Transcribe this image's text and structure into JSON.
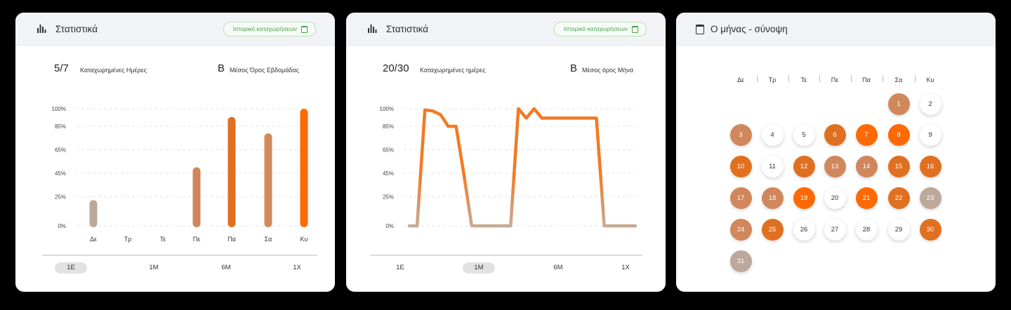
{
  "weekly_card": {
    "title": "Στατιστικά",
    "history_button": "Ιστορικό καταχωρήσεων",
    "days_logged": "5/7",
    "days_logged_label": "Καταχωρημένες Ημέρες",
    "grade": "Β",
    "grade_label": "Μέσος Όρος Εβδομάδας",
    "ranges": [
      "1Ε",
      "1Μ",
      "6Μ",
      "1Χ"
    ],
    "active_range": "1Ε"
  },
  "monthly_card": {
    "title": "Στατιστικά",
    "history_button": "Ιστορικό καταχωρήσεων",
    "days_logged": "20/30",
    "days_logged_label": "Καταχωρημένες ημέρες",
    "grade": "Β",
    "grade_label": "Μέσος όρος Μήνα",
    "ranges": [
      "1Ε",
      "1Μ",
      "6Μ",
      "1Χ"
    ],
    "active_range": "1Μ"
  },
  "calendar_card": {
    "title": "Ο μήνας - σύνοψη",
    "weekdays": [
      "Δε",
      "Τρ",
      "Τε",
      "Πε",
      "Πα",
      "Σα",
      "Κυ"
    ],
    "first_weekday_index": 5,
    "days": [
      {
        "day": "1",
        "status": "light"
      },
      {
        "day": "2",
        "status": "none"
      },
      {
        "day": "3",
        "status": "light"
      },
      {
        "day": "4",
        "status": "none"
      },
      {
        "day": "5",
        "status": "none"
      },
      {
        "day": "6",
        "status": "mid"
      },
      {
        "day": "7",
        "status": "strong"
      },
      {
        "day": "8",
        "status": "strong"
      },
      {
        "day": "9",
        "status": "none"
      },
      {
        "day": "10",
        "status": "mid"
      },
      {
        "day": "11",
        "status": "none"
      },
      {
        "day": "12",
        "status": "mid"
      },
      {
        "day": "13",
        "status": "light"
      },
      {
        "day": "14",
        "status": "light"
      },
      {
        "day": "15",
        "status": "mid"
      },
      {
        "day": "16",
        "status": "mid"
      },
      {
        "day": "17",
        "status": "light"
      },
      {
        "day": "18",
        "status": "light"
      },
      {
        "day": "19",
        "status": "strong"
      },
      {
        "day": "20",
        "status": "none"
      },
      {
        "day": "21",
        "status": "strong"
      },
      {
        "day": "22",
        "status": "mid"
      },
      {
        "day": "23",
        "status": "grey"
      },
      {
        "day": "24",
        "status": "light"
      },
      {
        "day": "25",
        "status": "mid"
      },
      {
        "day": "26",
        "status": "none"
      },
      {
        "day": "27",
        "status": "none"
      },
      {
        "day": "28",
        "status": "none"
      },
      {
        "day": "29",
        "status": "none"
      },
      {
        "day": "30",
        "status": "mid"
      },
      {
        "day": "31",
        "status": "grey"
      }
    ]
  },
  "colors": {
    "grey": "#bca99c",
    "light": "#d0875b",
    "mid": "#e07020",
    "strong": "#fd6a05"
  },
  "chart_data": [
    {
      "type": "bar",
      "categories": [
        "Δε",
        "Τρ",
        "Τε",
        "Πε",
        "Πα",
        "Σα",
        "Κυ"
      ],
      "values": [
        22,
        null,
        null,
        50,
        93,
        79,
        100
      ],
      "bar_colors": [
        "#bca99c",
        null,
        null,
        "#cf865b",
        "#e07020",
        "#d08a5d",
        "#fd6a05"
      ],
      "yticks": [
        "100%",
        "85%",
        "65%",
        "45%",
        "25%",
        "0%"
      ],
      "ytick_values": [
        100,
        85,
        65,
        45,
        25,
        0
      ],
      "ylim": [
        0,
        100
      ],
      "grid": true
    },
    {
      "type": "line",
      "x": [
        1,
        2,
        3,
        4,
        5,
        6,
        7,
        8,
        9,
        10,
        11,
        12,
        13,
        14,
        15,
        16,
        17,
        18,
        19,
        20,
        21,
        22,
        23,
        24,
        25,
        26,
        27,
        28,
        29,
        30
      ],
      "values": [
        0,
        0,
        99,
        98,
        95,
        85,
        85,
        44,
        0,
        0,
        0,
        0,
        0,
        0,
        100,
        92,
        100,
        92,
        92,
        92,
        92,
        92,
        92,
        92,
        92,
        0,
        0,
        0,
        0,
        0
      ],
      "yticks": [
        "100%",
        "85%",
        "65%",
        "45%",
        "25%",
        "0%"
      ],
      "ytick_values": [
        100,
        85,
        65,
        45,
        25,
        0
      ],
      "ylim": [
        0,
        100
      ],
      "grid": true,
      "line_color_high": "#f47a22",
      "line_color_low": "#c7aa97"
    }
  ]
}
